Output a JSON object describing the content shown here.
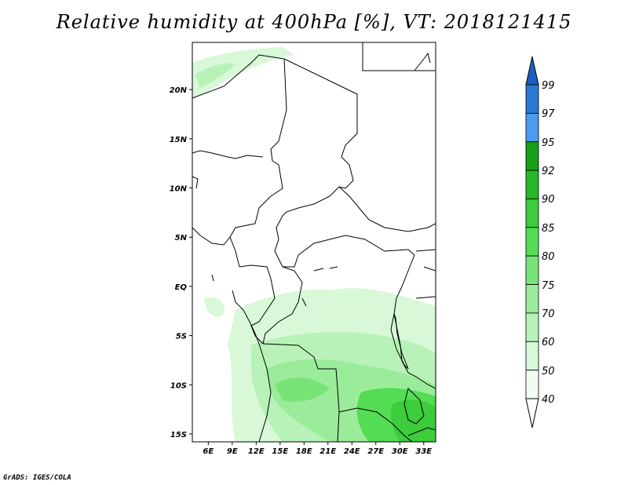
{
  "title": "Relative humidity at 400hPa [%], VT: 2018121415",
  "credit": "GrADS: IGES/COLA",
  "map": {
    "lat_labels": [
      "20N",
      "15N",
      "10N",
      "5N",
      "EQ",
      "5S",
      "10S",
      "15S"
    ],
    "lat_values": [
      20,
      15,
      10,
      5,
      0,
      -5,
      -10,
      -15
    ],
    "lon_labels": [
      "6E",
      "9E",
      "12E",
      "15E",
      "18E",
      "21E",
      "24E",
      "27E",
      "30E",
      "33E"
    ],
    "lon_values": [
      6,
      9,
      12,
      15,
      18,
      21,
      24,
      27,
      30,
      33
    ],
    "lon_range": [
      4,
      34.5
    ],
    "lat_range": [
      -15.8,
      24.8
    ]
  },
  "colorbar": {
    "labels": [
      "99",
      "97",
      "95",
      "92",
      "90",
      "85",
      "80",
      "75",
      "70",
      "60",
      "50",
      "40"
    ],
    "bins": [
      {
        "range": "97-99",
        "color": "#2a78d6"
      },
      {
        "range": "95-97",
        "color": "#4a9cef"
      },
      {
        "range": "92-95",
        "color": "#17a017"
      },
      {
        "range": "90-92",
        "color": "#26b626"
      },
      {
        "range": "85-90",
        "color": "#3ccc3c"
      },
      {
        "range": "80-85",
        "color": "#54dc54"
      },
      {
        "range": "75-80",
        "color": "#78e478"
      },
      {
        "range": "70-75",
        "color": "#9aec9a"
      },
      {
        "range": "60-70",
        "color": "#b8f2b8"
      },
      {
        "range": "50-60",
        "color": "#d8f8d8"
      },
      {
        "range": "40-50",
        "color": "#f2fdf2"
      }
    ],
    "top_arrow_color": "#1b5fc4",
    "bottom_arrow_color": "#ffffff"
  }
}
